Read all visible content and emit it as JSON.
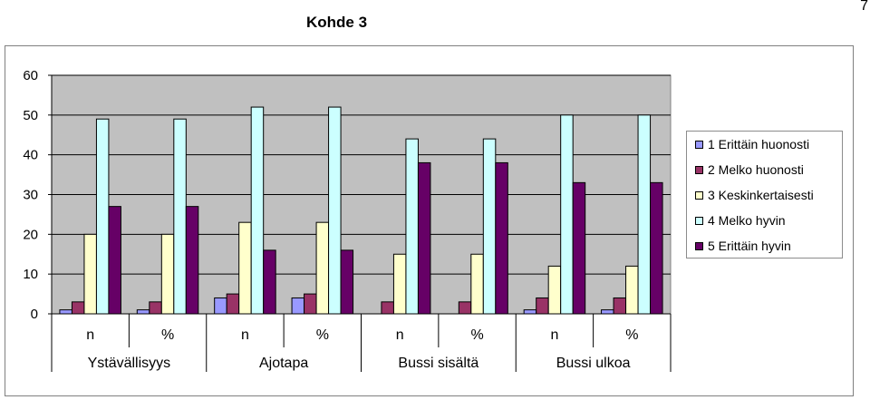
{
  "page_number": "7",
  "chart_data": {
    "type": "bar",
    "title": "Kohde 3",
    "xlabel": "",
    "ylabel": "",
    "ylim": [
      0,
      60
    ],
    "yticks": [
      "0",
      "10",
      "20",
      "30",
      "40",
      "50",
      "60"
    ],
    "grid": true,
    "legend_position": "right",
    "groups": [
      "Ystävällisyys",
      "Ajotapa",
      "Bussi sisältä",
      "Bussi ulkoa"
    ],
    "categories": [
      "n",
      "%",
      "n",
      "%",
      "n",
      "%",
      "n",
      "%"
    ],
    "series": [
      {
        "name": "1 Erittäin huonosti",
        "color": "#9999ff",
        "values": [
          1,
          1,
          4,
          4,
          0,
          0,
          1,
          1
        ]
      },
      {
        "name": "2 Melko huonosti",
        "color": "#993366",
        "values": [
          3,
          3,
          5,
          5,
          3,
          3,
          4,
          4
        ]
      },
      {
        "name": "3 Keskinkertaisesti",
        "color": "#ffffcc",
        "values": [
          20,
          20,
          23,
          23,
          15,
          15,
          12,
          12
        ]
      },
      {
        "name": "4 Melko hyvin",
        "color": "#ccffff",
        "values": [
          49,
          49,
          52,
          52,
          44,
          44,
          50,
          50
        ]
      },
      {
        "name": "5 Erittäin hyvin",
        "color": "#660066",
        "values": [
          27,
          27,
          16,
          16,
          38,
          38,
          33,
          33
        ]
      }
    ]
  }
}
